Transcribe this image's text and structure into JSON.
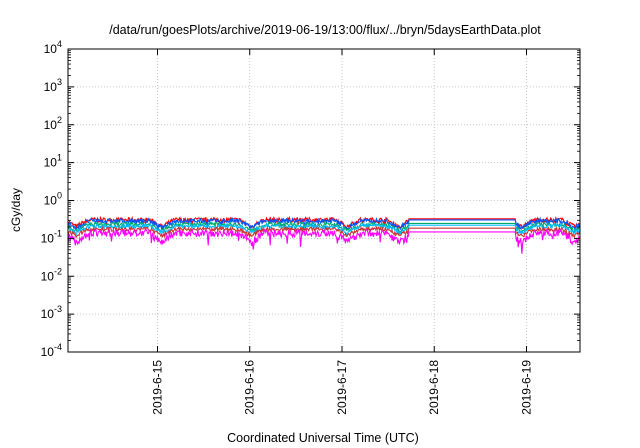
{
  "chart_data": {
    "type": "line",
    "title": "/data/run/goesPlots/archive/2019-06-19/13:00/flux/../bryn/5daysEarthData.plot",
    "xlabel": "Coordinated Universal Time (UTC)",
    "ylabel": "cGy/day",
    "yscale": "log",
    "ylim": [
      0.0001,
      10000
    ],
    "xlim": [
      14.03,
      19.58
    ],
    "grid": true,
    "x_ticks": [
      {
        "value": 15,
        "label": "2019-6-15"
      },
      {
        "value": 16,
        "label": "2019-6-16"
      },
      {
        "value": 17,
        "label": "2019-6-17"
      },
      {
        "value": 18,
        "label": "2019-6-18"
      },
      {
        "value": 19,
        "label": "2019-6-19"
      }
    ],
    "y_ticks": [
      {
        "value": 0.0001,
        "base": "10",
        "exp": "-4"
      },
      {
        "value": 0.001,
        "base": "10",
        "exp": "-3"
      },
      {
        "value": 0.01,
        "base": "10",
        "exp": "-2"
      },
      {
        "value": 0.1,
        "base": "10",
        "exp": "-1"
      },
      {
        "value": 1,
        "base": "10",
        "exp": "0"
      },
      {
        "value": 10,
        "base": "10",
        "exp": "1"
      },
      {
        "value": 100,
        "base": "10",
        "exp": "2"
      },
      {
        "value": 1000,
        "base": "10",
        "exp": "3"
      },
      {
        "value": 10000,
        "base": "10",
        "exp": "4"
      }
    ],
    "gap": [
      17.72,
      18.88
    ],
    "series": [
      {
        "color": "#ff0000",
        "level": 0.31,
        "noise_amp": 0.14,
        "dip_depth": 0.35,
        "spike": 0.12
      },
      {
        "color": "#0055ff",
        "level": 0.29,
        "noise_amp": 0.14,
        "dip_depth": 0.35,
        "spike": 0.12
      },
      {
        "color": "#00aa66",
        "level": 0.235,
        "noise_amp": 0.12,
        "dip_depth": 0.33,
        "spike": 0.1
      },
      {
        "color": "#00bbff",
        "level": 0.21,
        "noise_amp": 0.12,
        "dip_depth": 0.33,
        "spike": 0.1
      },
      {
        "color": "#cc3333",
        "level": 0.175,
        "noise_amp": 0.12,
        "dip_depth": 0.33,
        "spike": 0.1
      },
      {
        "color": "#ff00ff",
        "level": 0.14,
        "noise_amp": 0.22,
        "dip_depth": 0.45,
        "spike": 0.35
      }
    ]
  }
}
